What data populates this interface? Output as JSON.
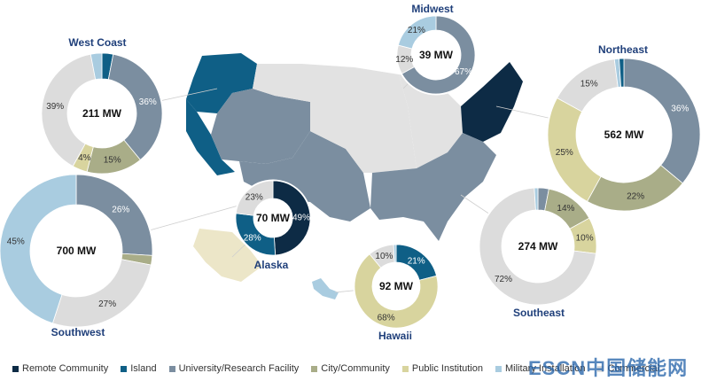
{
  "chart_data": [
    {
      "type": "pie",
      "region": "West Coast",
      "total": "211 MW",
      "slices": [
        {
          "category": "Island",
          "value": 3,
          "label": ""
        },
        {
          "category": "University/Research Facility",
          "value": 36,
          "label": "36%"
        },
        {
          "category": "City/Community",
          "value": 15,
          "label": "15%"
        },
        {
          "category": "Public Institution",
          "value": 4,
          "label": "4%"
        },
        {
          "category": "Commercial",
          "value": 39,
          "label": "39%"
        },
        {
          "category": "Military Installation",
          "value": 3,
          "label": ""
        }
      ]
    },
    {
      "type": "pie",
      "region": "Midwest",
      "total": "39 MW",
      "slices": [
        {
          "category": "University/Research Facility",
          "value": 67,
          "label": "67%"
        },
        {
          "category": "Commercial",
          "value": 12,
          "label": "12%"
        },
        {
          "category": "Military Installation",
          "value": 21,
          "label": "21%"
        }
      ]
    },
    {
      "type": "pie",
      "region": "Northeast",
      "total": "562 MW",
      "slices": [
        {
          "category": "University/Research Facility",
          "value": 36,
          "label": "36%"
        },
        {
          "category": "City/Community",
          "value": 22,
          "label": "22%"
        },
        {
          "category": "Public Institution",
          "value": 25,
          "label": "25%"
        },
        {
          "category": "Commercial",
          "value": 15,
          "label": "15%"
        },
        {
          "category": "Military Installation",
          "value": 1,
          "label": ""
        },
        {
          "category": "Island",
          "value": 1,
          "label": ""
        }
      ]
    },
    {
      "type": "pie",
      "region": "Southwest",
      "total": "700 MW",
      "slices": [
        {
          "category": "University/Research Facility",
          "value": 26,
          "label": "26%"
        },
        {
          "category": "City/Community",
          "value": 2,
          "label": ""
        },
        {
          "category": "Commercial",
          "value": 27,
          "label": "27%"
        },
        {
          "category": "Military Installation",
          "value": 45,
          "label": "45%"
        }
      ]
    },
    {
      "type": "pie",
      "region": "Alaska",
      "total": "70 MW",
      "slices": [
        {
          "category": "Remote Community",
          "value": 49,
          "label": "49%"
        },
        {
          "category": "Island",
          "value": 28,
          "label": "28%"
        },
        {
          "category": "Commercial",
          "value": 23,
          "label": "23%"
        }
      ]
    },
    {
      "type": "pie",
      "region": "Hawaii",
      "total": "92 MW",
      "slices": [
        {
          "category": "Island",
          "value": 21,
          "label": "21%"
        },
        {
          "category": "Public Institution",
          "value": 68,
          "label": "68%"
        },
        {
          "category": "Commercial",
          "value": 10,
          "label": "10%"
        },
        {
          "category": "Military Installation",
          "value": 1,
          "label": ""
        }
      ]
    },
    {
      "type": "pie",
      "region": "Southeast",
      "total": "274 MW",
      "slices": [
        {
          "category": "University/Research Facility",
          "value": 3,
          "label": ""
        },
        {
          "category": "City/Community",
          "value": 14,
          "label": "14%"
        },
        {
          "category": "Public Institution",
          "value": 10,
          "label": "10%"
        },
        {
          "category": "Commercial",
          "value": 72,
          "label": "72%"
        },
        {
          "category": "Military Installation",
          "value": 1,
          "label": ""
        }
      ]
    }
  ],
  "legend": [
    {
      "label": "Remote Community",
      "color": "#0d2b45"
    },
    {
      "label": "Island",
      "color": "#0f5f86"
    },
    {
      "label": "University/Research Facility",
      "color": "#7b8ea0"
    },
    {
      "label": "City/Community",
      "color": "#a9ad88"
    },
    {
      "label": "Public Institution",
      "color": "#d8d49e"
    },
    {
      "label": "Military Installation",
      "color": "#a9cce0"
    },
    {
      "label": "Commercial",
      "color": "#dcdcdc"
    }
  ],
  "watermark": "ESCN中国储能网"
}
